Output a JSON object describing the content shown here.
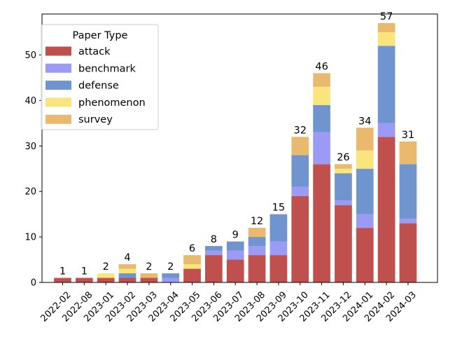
{
  "chart_data": {
    "type": "bar",
    "stacked": true,
    "title": "",
    "xlabel": "",
    "ylabel": "",
    "ylim": [
      0,
      59
    ],
    "yticks": [
      0,
      10,
      20,
      30,
      40,
      50
    ],
    "categories": [
      "2022-02",
      "2022-08",
      "2023-01",
      "2023-02",
      "2023-03",
      "2023-04",
      "2023-05",
      "2023-06",
      "2023-07",
      "2023-08",
      "2023-09",
      "2023-10",
      "2023-11",
      "2023-12",
      "2024-01",
      "2024-02",
      "2024-03"
    ],
    "series": [
      {
        "name": "attack",
        "color": "#c0504d",
        "values": [
          1,
          1,
          1,
          1,
          1,
          0,
          3,
          6,
          5,
          6,
          6,
          19,
          26,
          17,
          12,
          32,
          13
        ]
      },
      {
        "name": "benchmark",
        "color": "#9b9bf5",
        "values": [
          0,
          0,
          0,
          0,
          0,
          1,
          0,
          1,
          2,
          2,
          3,
          2,
          7,
          1,
          3,
          3,
          1
        ]
      },
      {
        "name": "defense",
        "color": "#7094cd",
        "values": [
          0,
          0,
          0,
          1,
          0,
          1,
          0,
          1,
          2,
          2,
          6,
          7,
          6,
          6,
          10,
          17,
          12
        ]
      },
      {
        "name": "phenomenon",
        "color": "#fae57c",
        "values": [
          0,
          0,
          1,
          1,
          0,
          0,
          1,
          0,
          0,
          0,
          0,
          0,
          4,
          1,
          4,
          3,
          0
        ]
      },
      {
        "name": "survey",
        "color": "#e9b96e",
        "values": [
          0,
          0,
          0,
          1,
          1,
          0,
          2,
          0,
          0,
          2,
          0,
          4,
          3,
          1,
          5,
          2,
          5
        ]
      }
    ],
    "totals": [
      1,
      1,
      2,
      4,
      2,
      2,
      6,
      8,
      9,
      12,
      15,
      32,
      46,
      26,
      34,
      57,
      31
    ],
    "legend": {
      "title": "Paper Type",
      "location": "top-left"
    }
  }
}
